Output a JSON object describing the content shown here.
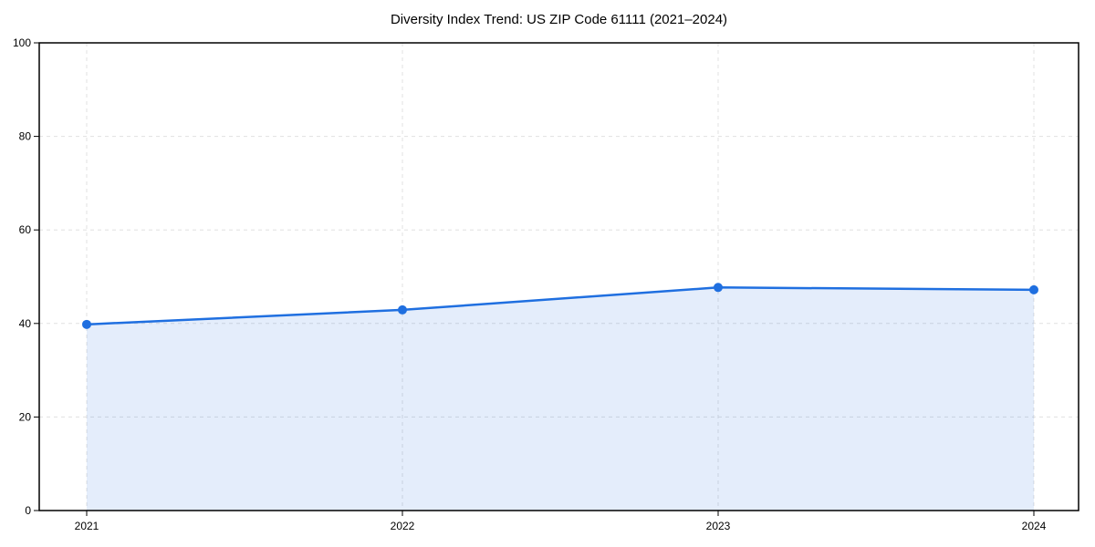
{
  "chart_data": {
    "type": "area",
    "title": "Diversity Index Trend: US ZIP Code 61111 (2021–2024)",
    "x": [
      2021,
      2022,
      2023,
      2024
    ],
    "values": [
      39.8,
      42.9,
      47.7,
      47.2
    ],
    "xticks": [
      "2021",
      "2022",
      "2023",
      "2024"
    ],
    "yticks": [
      0,
      20,
      40,
      60,
      80,
      100
    ],
    "ylim": [
      0,
      100
    ],
    "xlabel": "",
    "ylabel": "",
    "grid": "dashed",
    "legend": "none",
    "marker": "circle",
    "line_color": "#1f6fe0",
    "fill_color": "rgba(31,111,224,0.12)",
    "grid_color": "#e0e0e0",
    "axis_color": "#000000",
    "background_color": "#ffffff"
  }
}
